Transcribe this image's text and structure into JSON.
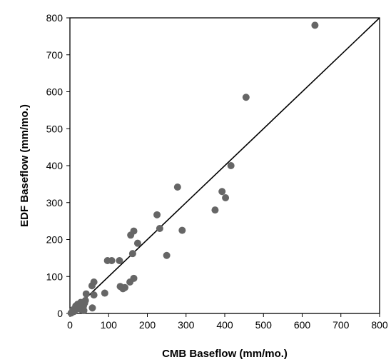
{
  "chart_data": {
    "type": "scatter",
    "xlabel": "CMB Baseflow (mm/mo.)",
    "ylabel": "EDF Baseflow (mm/mo.)",
    "xlim": [
      0,
      800
    ],
    "ylim": [
      0,
      800
    ],
    "xticks": [
      0,
      100,
      200,
      300,
      400,
      500,
      600,
      700,
      800
    ],
    "yticks": [
      0,
      100,
      200,
      300,
      400,
      500,
      600,
      700,
      800
    ],
    "grid": false,
    "legend": "none",
    "point_color": "#666666",
    "reference_line": {
      "type": "1:1",
      "from": [
        0,
        0
      ],
      "to": [
        800,
        800
      ]
    },
    "points": [
      [
        633,
        780
      ],
      [
        455,
        585
      ],
      [
        416,
        400
      ],
      [
        393,
        330
      ],
      [
        402,
        313
      ],
      [
        375,
        280
      ],
      [
        278,
        342
      ],
      [
        290,
        225
      ],
      [
        225,
        267
      ],
      [
        232,
        230
      ],
      [
        250,
        157
      ],
      [
        165,
        223
      ],
      [
        157,
        212
      ],
      [
        175,
        190
      ],
      [
        162,
        162
      ],
      [
        165,
        95
      ],
      [
        155,
        85
      ],
      [
        128,
        143
      ],
      [
        108,
        143
      ],
      [
        97,
        143
      ],
      [
        130,
        73
      ],
      [
        137,
        67
      ],
      [
        142,
        70
      ],
      [
        90,
        55
      ],
      [
        62,
        85
      ],
      [
        57,
        75
      ],
      [
        62,
        50
      ],
      [
        42,
        53
      ],
      [
        58,
        15
      ],
      [
        40,
        35
      ],
      [
        38,
        28
      ],
      [
        35,
        20
      ],
      [
        32,
        15
      ],
      [
        28,
        30
      ],
      [
        25,
        22
      ],
      [
        22,
        18
      ],
      [
        18,
        12
      ],
      [
        15,
        20
      ],
      [
        12,
        8
      ],
      [
        10,
        5
      ],
      [
        5,
        3
      ],
      [
        3,
        1
      ],
      [
        8,
        10
      ],
      [
        20,
        25
      ],
      [
        30,
        10
      ],
      [
        36,
        8
      ]
    ]
  }
}
